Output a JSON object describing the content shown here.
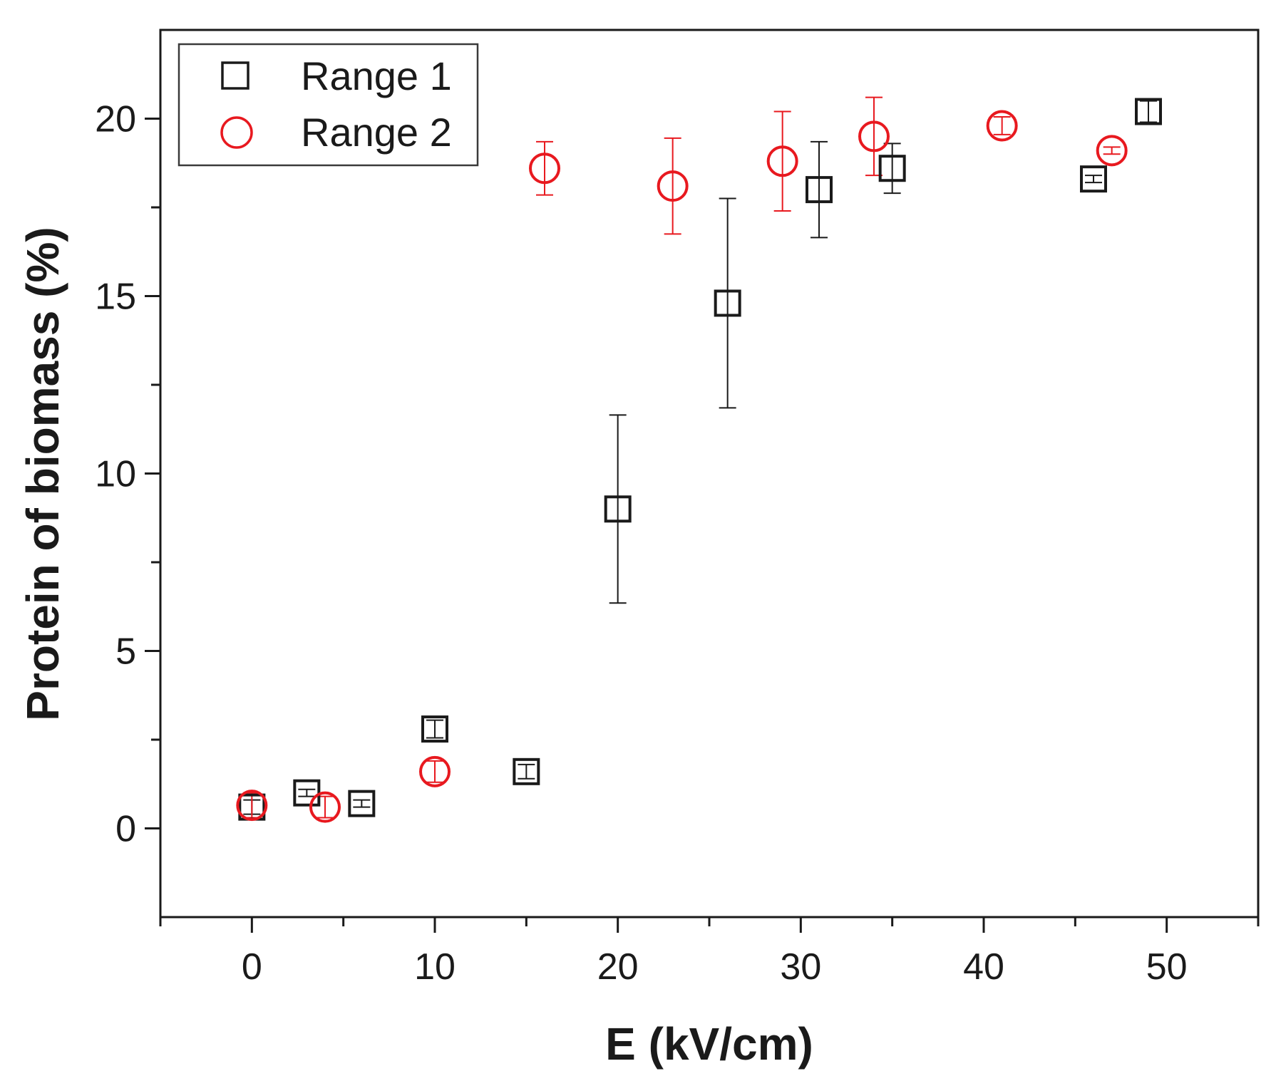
{
  "chart_data": {
    "type": "scatter",
    "title": "",
    "xlabel": "E (kV/cm)",
    "ylabel": "Protein of biomass (%)",
    "xlim": [
      -5,
      55
    ],
    "ylim": [
      -2.5,
      22.5
    ],
    "xticks": [
      0,
      10,
      20,
      30,
      40,
      50
    ],
    "yticks": [
      0,
      5,
      10,
      15,
      20
    ],
    "xminor": [
      -5,
      5,
      15,
      25,
      35,
      45,
      55
    ],
    "yminor": [
      2.5,
      7.5,
      12.5,
      17.5
    ],
    "legend_position": "top-left",
    "series": [
      {
        "name": "Range 1",
        "marker": "square",
        "color": "#1a1a1a",
        "points": [
          {
            "x": 0,
            "y": 0.6,
            "err": 0.2
          },
          {
            "x": 3,
            "y": 1.0,
            "err": 0.1
          },
          {
            "x": 6,
            "y": 0.7,
            "err": 0.1
          },
          {
            "x": 10,
            "y": 2.8,
            "err": 0.25
          },
          {
            "x": 15,
            "y": 1.6,
            "err": 0.2
          },
          {
            "x": 20,
            "y": 9.0,
            "err": 2.65
          },
          {
            "x": 26,
            "y": 14.8,
            "err": 2.95
          },
          {
            "x": 31,
            "y": 18.0,
            "err": 1.35
          },
          {
            "x": 35,
            "y": 18.6,
            "err": 0.7
          },
          {
            "x": 46,
            "y": 18.3,
            "err": 0.1
          },
          {
            "x": 49,
            "y": 20.2,
            "err": 0.3
          }
        ]
      },
      {
        "name": "Range 2",
        "marker": "circle",
        "color": "#e8191f",
        "points": [
          {
            "x": 0,
            "y": 0.65,
            "err": 0.35
          },
          {
            "x": 4,
            "y": 0.6,
            "err": 0.3
          },
          {
            "x": 10,
            "y": 1.6,
            "err": 0.3
          },
          {
            "x": 16,
            "y": 18.6,
            "err": 0.75
          },
          {
            "x": 23,
            "y": 18.1,
            "err": 1.35
          },
          {
            "x": 29,
            "y": 18.8,
            "err": 1.4
          },
          {
            "x": 34,
            "y": 19.5,
            "err": 1.1
          },
          {
            "x": 41,
            "y": 19.8,
            "err": 0.25
          },
          {
            "x": 47,
            "y": 19.1,
            "err": 0.1
          }
        ]
      }
    ]
  }
}
